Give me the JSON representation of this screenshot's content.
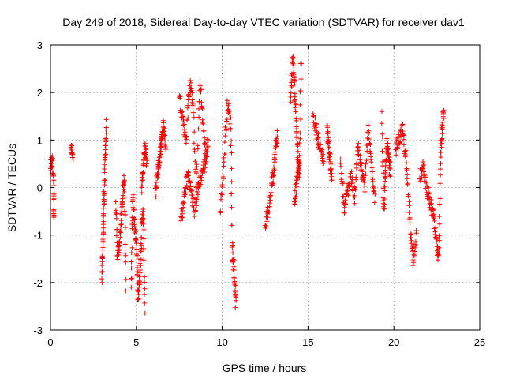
{
  "chart_data": {
    "type": "scatter",
    "title": "Day 249 of 2018, Sidereal Day-to-day VTEC variation (SDTVAR) for receiver dav1",
    "xlabel": "GPS time / hours",
    "ylabel": "SDTVAR / TECUs",
    "xlim": [
      0,
      25
    ],
    "ylim": [
      -3,
      3
    ],
    "xticks": [
      "0",
      "5",
      "10",
      "15",
      "20",
      "25"
    ],
    "yticks": [
      "-3",
      "-2",
      "-1",
      "0",
      "1",
      "2",
      "3"
    ],
    "grid": true,
    "marker": "plus",
    "series": [
      {
        "name": "SDTVAR",
        "color": "#ff0000",
        "segments": [
          {
            "x": [
              0.0,
              0.1,
              0.2,
              0.2
            ],
            "y": [
              0.4,
              0.6,
              0.0,
              -0.65
            ]
          },
          {
            "x": [
              1.2,
              1.3
            ],
            "y": [
              0.85,
              0.6
            ]
          },
          {
            "x": [
              3.0,
              3.05,
              3.1,
              3.15,
              3.2,
              3.25
            ],
            "y": [
              -2.0,
              -1.3,
              -0.5,
              0.1,
              0.8,
              1.3
            ]
          },
          {
            "x": [
              3.8,
              3.9,
              4.0,
              4.1,
              4.2,
              4.3,
              4.4
            ],
            "y": [
              -0.3,
              -1.5,
              -1.2,
              -0.8,
              -0.2,
              0.2,
              -2.05
            ]
          },
          {
            "x": [
              4.7,
              4.8,
              4.9,
              5.0,
              5.1,
              5.2,
              5.3,
              5.4,
              5.5
            ],
            "y": [
              -2.1,
              -0.2,
              -0.8,
              -1.2,
              -2.3,
              -1.8,
              -1.0,
              -0.4,
              -2.75
            ]
          },
          {
            "x": [
              5.3,
              5.4,
              5.5,
              5.6
            ],
            "y": [
              0.0,
              0.4,
              0.85,
              0.5
            ]
          },
          {
            "x": [
              6.1,
              6.2,
              6.3,
              6.4,
              6.5,
              6.6,
              6.7
            ],
            "y": [
              -0.2,
              0.2,
              0.5,
              0.8,
              1.1,
              1.3,
              0.9
            ]
          },
          {
            "x": [
              7.5,
              7.7,
              7.9,
              8.1,
              8.3,
              8.5,
              8.7,
              8.9,
              9.1
            ],
            "y": [
              1.9,
              1.5,
              1.0,
              2.2,
              1.8,
              0.0,
              2.3,
              1.2,
              0.6
            ]
          },
          {
            "x": [
              7.6,
              7.8,
              8.0,
              8.2,
              8.4,
              8.6,
              8.8,
              9.0,
              9.2
            ],
            "y": [
              -0.7,
              -0.2,
              0.3,
              -0.1,
              -0.5,
              0.0,
              0.3,
              0.5,
              1.0
            ]
          },
          {
            "x": [
              9.9,
              10.1,
              10.3,
              10.5,
              10.6,
              10.7,
              10.8
            ],
            "y": [
              -0.5,
              0.5,
              1.8,
              1.3,
              -1.3,
              -1.8,
              -2.5
            ]
          },
          {
            "x": [
              12.5,
              12.7,
              12.9,
              13.0,
              13.1,
              13.2
            ],
            "y": [
              -0.8,
              -0.5,
              0.1,
              0.4,
              0.8,
              1.1
            ]
          },
          {
            "x": [
              14.0,
              14.1,
              14.2,
              14.3,
              14.4,
              14.5,
              14.6
            ],
            "y": [
              1.8,
              2.8,
              2.2,
              1.5,
              0.8,
              0.2,
              2.75
            ]
          },
          {
            "x": [
              14.2,
              14.3,
              14.4,
              14.5
            ],
            "y": [
              -0.3,
              0.0,
              0.3,
              0.6
            ]
          },
          {
            "x": [
              15.3,
              15.5,
              15.7,
              15.9
            ],
            "y": [
              1.5,
              1.2,
              0.8,
              0.6
            ]
          },
          {
            "x": [
              16.1,
              16.2,
              16.3,
              16.4
            ],
            "y": [
              1.3,
              0.9,
              0.5,
              0.2
            ]
          },
          {
            "x": [
              16.9,
              17.1,
              17.3,
              17.5,
              17.7,
              17.9,
              18.1,
              18.3,
              18.5,
              18.7,
              18.9
            ],
            "y": [
              0.6,
              -0.5,
              -0.1,
              0.3,
              -0.3,
              0.9,
              0.4,
              0.0,
              1.2,
              0.5,
              -0.2
            ]
          },
          {
            "x": [
              19.3,
              19.4,
              19.5,
              19.6,
              19.7,
              19.8
            ],
            "y": [
              1.6,
              -0.5,
              0.2,
              0.9,
              0.6,
              0.3
            ]
          },
          {
            "x": [
              20.1,
              20.3,
              20.5,
              20.7,
              20.9,
              21.1,
              21.3
            ],
            "y": [
              0.8,
              1.0,
              1.2,
              0.6,
              -0.5,
              -1.5,
              -1.0
            ]
          },
          {
            "x": [
              21.5,
              21.7,
              21.9,
              22.1,
              22.3,
              22.5,
              22.6,
              22.7,
              22.8,
              22.9
            ],
            "y": [
              0.2,
              0.4,
              0.0,
              -0.3,
              -0.6,
              -1.2,
              -1.55,
              0.5,
              1.25,
              1.7
            ]
          }
        ]
      }
    ]
  }
}
